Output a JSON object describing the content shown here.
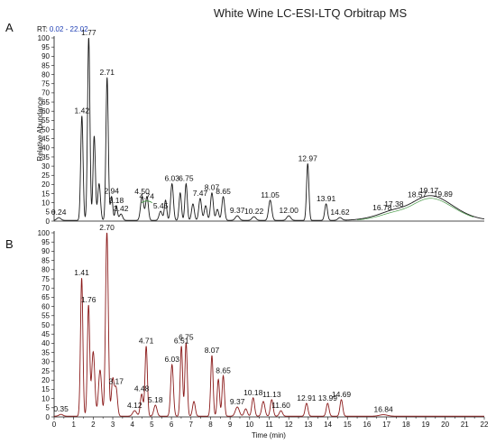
{
  "title": "White Wine LC-ESI-LTQ Orbitrap MS",
  "rt_prefix": "RT:",
  "rt_range": "0.02 - 22.02",
  "chart_data": [
    {
      "type": "line",
      "panel": "A",
      "title": "White Wine LC-ESI-LTQ Orbitrap MS",
      "xlabel": "",
      "ylabel": "Relative Abundance",
      "xlim": [
        0,
        22
      ],
      "ylim": [
        0,
        100
      ],
      "yticks": [
        0,
        5,
        10,
        15,
        20,
        25,
        30,
        35,
        40,
        45,
        50,
        55,
        60,
        65,
        70,
        75,
        80,
        85,
        90,
        95,
        100
      ],
      "series_color": "#1a1a1a",
      "baseline_end": 0.8,
      "peaks": [
        {
          "label": "0.24",
          "x": 0.24,
          "y": 1.5,
          "w": 0.1
        },
        {
          "label": "1.42",
          "x": 1.42,
          "y": 57,
          "w": 0.06
        },
        {
          "label": "1.77",
          "x": 1.77,
          "y": 100,
          "w": 0.06
        },
        {
          "label": "",
          "x": 2.05,
          "y": 46,
          "w": 0.06
        },
        {
          "label": "",
          "x": 2.3,
          "y": 20,
          "w": 0.07
        },
        {
          "label": "2.71",
          "x": 2.71,
          "y": 78,
          "w": 0.06
        },
        {
          "label": "2.94",
          "x": 2.94,
          "y": 13,
          "w": 0.06
        },
        {
          "label": "3.18",
          "x": 3.18,
          "y": 8,
          "w": 0.06
        },
        {
          "label": "3.42",
          "x": 3.42,
          "y": 3.5,
          "w": 0.08
        },
        {
          "label": "4.50",
          "x": 4.5,
          "y": 13,
          "w": 0.08
        },
        {
          "label": "",
          "x": 4.75,
          "y": 13,
          "w": 0.07
        },
        {
          "label": "5.45",
          "x": 5.45,
          "y": 5,
          "w": 0.08
        },
        {
          "label": "",
          "x": 5.7,
          "y": 11,
          "w": 0.06
        },
        {
          "label": "6.03",
          "x": 6.03,
          "y": 20,
          "w": 0.07
        },
        {
          "label": "",
          "x": 6.45,
          "y": 15,
          "w": 0.06
        },
        {
          "label": "6.75",
          "x": 6.75,
          "y": 20,
          "w": 0.06
        },
        {
          "label": "",
          "x": 7.1,
          "y": 9,
          "w": 0.07
        },
        {
          "label": "7.47",
          "x": 7.47,
          "y": 12,
          "w": 0.07
        },
        {
          "label": "",
          "x": 7.75,
          "y": 8,
          "w": 0.07
        },
        {
          "label": "8.07",
          "x": 8.07,
          "y": 15,
          "w": 0.07
        },
        {
          "label": "",
          "x": 8.35,
          "y": 6,
          "w": 0.07
        },
        {
          "label": "8.65",
          "x": 8.65,
          "y": 13,
          "w": 0.07
        },
        {
          "label": "9.37",
          "x": 9.37,
          "y": 2.5,
          "w": 0.1
        },
        {
          "label": "10.22",
          "x": 10.22,
          "y": 2,
          "w": 0.1
        },
        {
          "label": "11.05",
          "x": 11.05,
          "y": 11,
          "w": 0.08
        },
        {
          "label": "12.00",
          "x": 12.0,
          "y": 2.5,
          "w": 0.1
        },
        {
          "label": "12.97",
          "x": 12.97,
          "y": 31,
          "w": 0.06
        },
        {
          "label": "13.91",
          "x": 13.91,
          "y": 9,
          "w": 0.07
        },
        {
          "label": "14.62",
          "x": 14.62,
          "y": 1.5,
          "w": 0.1
        },
        {
          "label": "16.78",
          "x": 16.78,
          "y": 2,
          "w": 0.8
        },
        {
          "label": "17.38",
          "x": 17.38,
          "y": 2.5,
          "w": 0.6
        },
        {
          "label": "18.57",
          "x": 18.57,
          "y": 4,
          "w": 0.8
        },
        {
          "label": "19.17",
          "x": 19.17,
          "y": 5,
          "w": 0.8
        },
        {
          "label": "19.89",
          "x": 19.89,
          "y": 7,
          "w": 1.0
        },
        {
          "label": "4.74",
          "x": 4.74,
          "y": 10.5,
          "w": 0.05,
          "green": true
        }
      ]
    },
    {
      "type": "line",
      "panel": "B",
      "title": "",
      "xlabel": "Time (min)",
      "ylabel": "",
      "xlim": [
        0,
        22
      ],
      "ylim": [
        0,
        100
      ],
      "xticks": [
        0,
        1,
        2,
        3,
        4,
        5,
        6,
        7,
        8,
        9,
        10,
        11,
        12,
        13,
        14,
        15,
        16,
        17,
        18,
        19,
        20,
        21,
        22
      ],
      "yticks": [
        0,
        5,
        10,
        15,
        20,
        25,
        30,
        35,
        40,
        45,
        50,
        55,
        60,
        65,
        70,
        75,
        80,
        85,
        90,
        95,
        100
      ],
      "series_color": "#8b1a1a",
      "baseline_end": 0.8,
      "peaks": [
        {
          "label": "0.35",
          "x": 0.35,
          "y": 1,
          "w": 0.1
        },
        {
          "label": "1.41",
          "x": 1.41,
          "y": 75,
          "w": 0.06
        },
        {
          "label": "1.76",
          "x": 1.76,
          "y": 60,
          "w": 0.06
        },
        {
          "label": "",
          "x": 2.0,
          "y": 35,
          "w": 0.08
        },
        {
          "label": "",
          "x": 2.35,
          "y": 25,
          "w": 0.08
        },
        {
          "label": "2.70",
          "x": 2.7,
          "y": 100,
          "w": 0.07
        },
        {
          "label": "",
          "x": 3.0,
          "y": 20,
          "w": 0.07
        },
        {
          "label": "3.17",
          "x": 3.17,
          "y": 15,
          "w": 0.07
        },
        {
          "label": "4.12",
          "x": 4.12,
          "y": 3,
          "w": 0.1
        },
        {
          "label": "4.48",
          "x": 4.48,
          "y": 12,
          "w": 0.07
        },
        {
          "label": "4.71",
          "x": 4.71,
          "y": 38,
          "w": 0.06
        },
        {
          "label": "5.18",
          "x": 5.18,
          "y": 6,
          "w": 0.08
        },
        {
          "label": "6.03",
          "x": 6.03,
          "y": 28,
          "w": 0.07
        },
        {
          "label": "6.51",
          "x": 6.51,
          "y": 38,
          "w": 0.06
        },
        {
          "label": "6.75",
          "x": 6.75,
          "y": 40,
          "w": 0.06
        },
        {
          "label": "",
          "x": 7.15,
          "y": 8,
          "w": 0.07
        },
        {
          "label": "8.07",
          "x": 8.07,
          "y": 33,
          "w": 0.06
        },
        {
          "label": "",
          "x": 8.4,
          "y": 20,
          "w": 0.06
        },
        {
          "label": "8.65",
          "x": 8.65,
          "y": 22,
          "w": 0.06
        },
        {
          "label": "9.37",
          "x": 9.37,
          "y": 5,
          "w": 0.1
        },
        {
          "label": "",
          "x": 9.8,
          "y": 4,
          "w": 0.08
        },
        {
          "label": "10.18",
          "x": 10.18,
          "y": 10,
          "w": 0.07
        },
        {
          "label": "",
          "x": 10.7,
          "y": 8,
          "w": 0.08
        },
        {
          "label": "11.13",
          "x": 11.13,
          "y": 9,
          "w": 0.07
        },
        {
          "label": "11.60",
          "x": 11.6,
          "y": 3,
          "w": 0.08
        },
        {
          "label": "12.91",
          "x": 12.91,
          "y": 7,
          "w": 0.07
        },
        {
          "label": "13.99",
          "x": 13.99,
          "y": 7,
          "w": 0.07
        },
        {
          "label": "14.69",
          "x": 14.69,
          "y": 9,
          "w": 0.07
        },
        {
          "label": "16.84",
          "x": 16.84,
          "y": 0.8,
          "w": 0.2
        }
      ]
    }
  ]
}
